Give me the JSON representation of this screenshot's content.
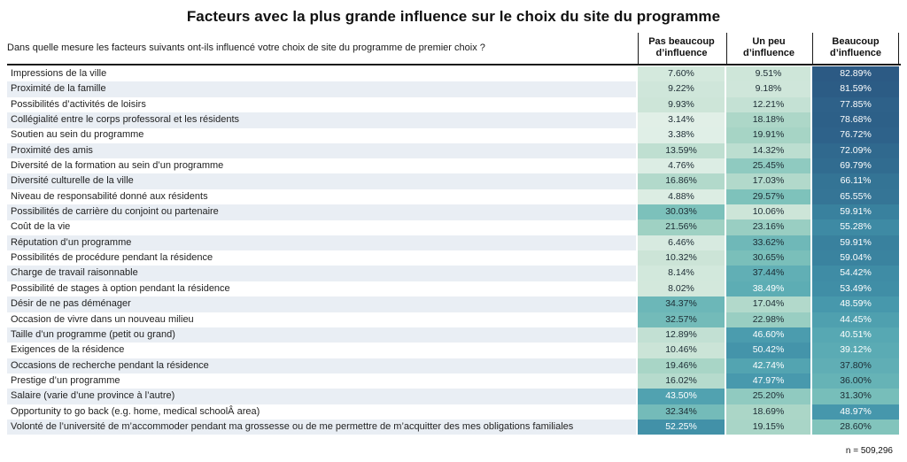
{
  "colors": {
    "row_stripe": "#e9eef4",
    "header_line": "#1a1a1a",
    "heat_low": "#eaf4ee",
    "heat_high": "#24426e"
  },
  "chart_data": {
    "type": "heatmap",
    "title": "Facteurs avec la plus grande influence sur le choix du site du programme",
    "question": "Dans quelle mesure les facteurs suivants ont-ils influencé votre choix de site du programme de premier choix ?",
    "columns": [
      "Pas beaucoup d’influence",
      "Un peu d’influence",
      "Beaucoup d’influence"
    ],
    "value_format": "percent_2dp",
    "n_label": "n = 509,296",
    "color_scale": [
      [
        0,
        "#eaf4ee"
      ],
      [
        10,
        "#cde5d8"
      ],
      [
        20,
        "#a6d4c5"
      ],
      [
        30,
        "#7cc1bb"
      ],
      [
        40,
        "#58a9b3"
      ],
      [
        50,
        "#4495ab"
      ],
      [
        60,
        "#39819e"
      ],
      [
        70,
        "#316c90"
      ],
      [
        82,
        "#2c5b85"
      ],
      [
        100,
        "#24426e"
      ]
    ],
    "rows": [
      {
        "label": "Impressions de la ville",
        "values": [
          7.6,
          9.51,
          82.89
        ]
      },
      {
        "label": "Proximité de la famille",
        "values": [
          9.22,
          9.18,
          81.59
        ]
      },
      {
        "label": "Possibilités d’activités de loisirs",
        "values": [
          9.93,
          12.21,
          77.85
        ]
      },
      {
        "label": "Collégialité entre le corps professoral et les résidents",
        "values": [
          3.14,
          18.18,
          78.68
        ]
      },
      {
        "label": "Soutien au sein du programme",
        "values": [
          3.38,
          19.91,
          76.72
        ]
      },
      {
        "label": "Proximité des amis",
        "values": [
          13.59,
          14.32,
          72.09
        ]
      },
      {
        "label": "Diversité de la formation au sein d’un programme",
        "values": [
          4.76,
          25.45,
          69.79
        ]
      },
      {
        "label": "Diversité culturelle de la ville",
        "values": [
          16.86,
          17.03,
          66.11
        ]
      },
      {
        "label": "Niveau de responsabilité donné aux résidents",
        "values": [
          4.88,
          29.57,
          65.55
        ]
      },
      {
        "label": "Possibilités de carrière du conjoint ou partenaire",
        "values": [
          30.03,
          10.06,
          59.91
        ]
      },
      {
        "label": "Coût de la vie",
        "values": [
          21.56,
          23.16,
          55.28
        ]
      },
      {
        "label": "Réputation d’un programme",
        "values": [
          6.46,
          33.62,
          59.91
        ]
      },
      {
        "label": "Possibilités de procédure pendant la résidence",
        "values": [
          10.32,
          30.65,
          59.04
        ]
      },
      {
        "label": "Charge de travail raisonnable",
        "values": [
          8.14,
          37.44,
          54.42
        ]
      },
      {
        "label": "Possibilité de stages à option pendant la résidence",
        "values": [
          8.02,
          38.49,
          53.49
        ]
      },
      {
        "label": "Désir de ne pas déménager",
        "values": [
          34.37,
          17.04,
          48.59
        ]
      },
      {
        "label": "Occasion de vivre dans un nouveau milieu",
        "values": [
          32.57,
          22.98,
          44.45
        ]
      },
      {
        "label": "Taille d’un programme (petit ou grand)",
        "values": [
          12.89,
          46.6,
          40.51
        ]
      },
      {
        "label": "Exigences de la résidence",
        "values": [
          10.46,
          50.42,
          39.12
        ]
      },
      {
        "label": "Occasions de recherche pendant la résidence",
        "values": [
          19.46,
          42.74,
          37.8
        ]
      },
      {
        "label": "Prestige d’un programme",
        "values": [
          16.02,
          47.97,
          36.0
        ]
      },
      {
        "label": "Salaire (varie d’une province à l’autre)",
        "values": [
          43.5,
          25.2,
          31.3
        ]
      },
      {
        "label": "Opportunity to go back (e.g. home, medical schoolÂ area)",
        "values": [
          32.34,
          18.69,
          48.97
        ]
      },
      {
        "label": "Volonté de l’université de m’accommoder pendant ma grossesse ou de me permettre de m’acquitter des mes obligations familiales",
        "values": [
          52.25,
          19.15,
          28.6
        ]
      }
    ]
  }
}
